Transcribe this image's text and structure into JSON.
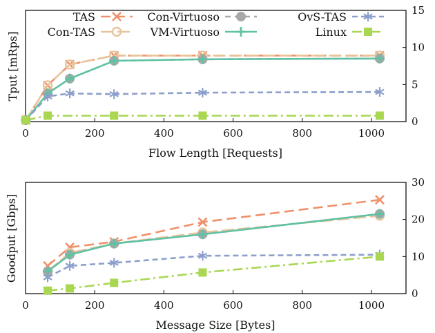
{
  "chart_data": [
    {
      "type": "line",
      "xlabel": "Flow Length [Requests]",
      "ylabel": "Tput [mRps]",
      "xlim": [
        0,
        1100
      ],
      "ylim": [
        0,
        15
      ],
      "xticks": [
        0,
        200,
        400,
        600,
        800,
        1000
      ],
      "yticks": [
        0,
        5,
        10,
        15
      ],
      "ytick_side": "right",
      "grid": false,
      "legend": "top, 3 columns",
      "series": [
        {
          "name": "TAS",
          "x": [
            1,
            64,
            128,
            256,
            512,
            1024
          ],
          "values": [
            0.2,
            4.9,
            7.7,
            8.9,
            8.9,
            8.9
          ]
        },
        {
          "name": "Con-TAS",
          "x": [
            1,
            64,
            128,
            256,
            512,
            1024
          ],
          "values": [
            0.2,
            4.9,
            7.7,
            8.9,
            8.9,
            8.9
          ]
        },
        {
          "name": "Con-Virtuoso",
          "x": [
            1,
            64,
            128,
            256,
            512,
            1024
          ],
          "values": [
            0.2,
            3.8,
            5.8,
            8.2,
            8.4,
            8.5
          ]
        },
        {
          "name": "VM-Virtuoso",
          "x": [
            1,
            64,
            128,
            256,
            512,
            1024
          ],
          "values": [
            0.2,
            3.8,
            5.8,
            8.2,
            8.4,
            8.5
          ]
        },
        {
          "name": "OvS-TAS",
          "x": [
            1,
            64,
            128,
            256,
            512,
            1024
          ],
          "values": [
            0.2,
            3.4,
            3.8,
            3.7,
            3.9,
            4.0
          ]
        },
        {
          "name": "Linux",
          "x": [
            1,
            64,
            256,
            512,
            1024
          ],
          "values": [
            0.2,
            0.8,
            0.8,
            0.8,
            0.8
          ]
        }
      ]
    },
    {
      "type": "line",
      "xlabel": "Message Size [Bytes]",
      "ylabel": "Goodput [Gbps]",
      "xlim": [
        0,
        1100
      ],
      "ylim": [
        0,
        30
      ],
      "xticks": [
        0,
        200,
        400,
        600,
        800,
        1000
      ],
      "yticks": [
        0,
        10,
        20,
        30
      ],
      "ytick_side": "right",
      "grid": false,
      "series": [
        {
          "name": "TAS",
          "x": [
            64,
            128,
            256,
            512,
            1024
          ],
          "values": [
            7.5,
            12.5,
            14.0,
            19.3,
            25.3
          ]
        },
        {
          "name": "Con-TAS",
          "x": [
            64,
            128,
            256,
            512,
            1024
          ],
          "values": [
            6.0,
            11.0,
            13.5,
            16.5,
            21.0
          ]
        },
        {
          "name": "Con-Virtuoso",
          "x": [
            64,
            128,
            256,
            512,
            1024
          ],
          "values": [
            6.0,
            10.5,
            13.5,
            16.0,
            21.5
          ]
        },
        {
          "name": "VM-Virtuoso",
          "x": [
            64,
            128,
            256,
            512,
            1024
          ],
          "values": [
            6.0,
            10.5,
            13.5,
            16.0,
            21.5
          ]
        },
        {
          "name": "OvS-TAS",
          "x": [
            64,
            128,
            256,
            512,
            1024
          ],
          "values": [
            4.4,
            7.5,
            8.3,
            10.2,
            10.5
          ]
        },
        {
          "name": "Linux",
          "x": [
            64,
            128,
            256,
            512,
            1024
          ],
          "values": [
            0.8,
            1.4,
            2.9,
            5.7,
            10.0
          ]
        }
      ]
    }
  ],
  "styles": {
    "TAS": {
      "color": "#f0906a",
      "marker": "x",
      "dash": "14,7"
    },
    "Con-TAS": {
      "color": "#e8c49a",
      "marker": "circle-open",
      "dash": "18,6"
    },
    "Con-Virtuoso": {
      "color": "#a8a8a8",
      "marker": "circle-filled",
      "dash": "8,6"
    },
    "VM-Virtuoso": {
      "color": "#5fc2a3",
      "marker": "plus",
      "dash": ""
    },
    "OvS-TAS": {
      "color": "#8c9fcb",
      "marker": "asterisk",
      "dash": "8,5"
    },
    "Linux": {
      "color": "#a9d752",
      "marker": "square",
      "dash": "14,5,3,5"
    }
  },
  "legend_order": [
    "TAS",
    "Con-TAS",
    "Con-Virtuoso",
    "VM-Virtuoso",
    "OvS-TAS",
    "Linux"
  ]
}
